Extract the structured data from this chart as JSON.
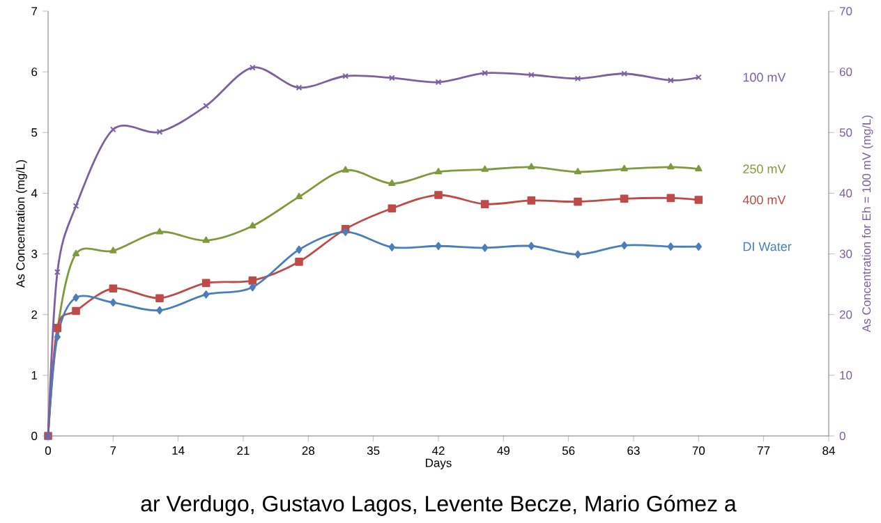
{
  "chart_data": {
    "type": "line",
    "xlabel": "Days",
    "ylabel": "As Concentration (mg/L)",
    "y2label": "As Concentration for Eh = 100 mV (mg/L)",
    "x": [
      0,
      1,
      3,
      7,
      12,
      17,
      22,
      27,
      32,
      37,
      42,
      47,
      52,
      57,
      62,
      67,
      70
    ],
    "xlim": [
      0,
      84
    ],
    "xticks": [
      0,
      7,
      14,
      21,
      28,
      35,
      42,
      49,
      56,
      63,
      70,
      77,
      84
    ],
    "ylim": [
      0,
      7
    ],
    "yticks": [
      0,
      1,
      2,
      3,
      4,
      5,
      6,
      7
    ],
    "y2lim": [
      0,
      70
    ],
    "y2ticks": [
      0,
      10,
      20,
      30,
      40,
      50,
      60,
      70
    ],
    "line_style": "solid",
    "series": [
      {
        "name": "DI Water",
        "color": "#4a7ebb",
        "marker": "diamond",
        "values": [
          0,
          1.63,
          2.28,
          2.2,
          2.07,
          2.33,
          2.45,
          3.07,
          3.36,
          3.11,
          3.13,
          3.1,
          3.13,
          2.99,
          3.14,
          3.12,
          3.12
        ]
      },
      {
        "name": "400 mV",
        "color": "#be4b48",
        "marker": "square",
        "values": [
          0,
          1.78,
          2.06,
          2.43,
          2.27,
          2.52,
          2.56,
          2.87,
          3.41,
          3.75,
          3.97,
          3.82,
          3.88,
          3.86,
          3.91,
          3.92,
          3.89
        ]
      },
      {
        "name": "250 mV",
        "color": "#7e9a3c",
        "marker": "triangle",
        "values": [
          0,
          1.75,
          3.0,
          3.05,
          3.36,
          3.22,
          3.46,
          3.94,
          4.38,
          4.16,
          4.35,
          4.39,
          4.43,
          4.35,
          4.4,
          4.43,
          4.4
        ]
      },
      {
        "name": "100 mV",
        "color": "#7d60a0",
        "marker": "cross",
        "axis": "y2",
        "values": [
          0,
          27,
          37.9,
          50.5,
          50.1,
          54.4,
          60.7,
          57.4,
          59.3,
          59,
          58.3,
          59.8,
          59.5,
          58.9,
          59.7,
          58.6,
          59.1
        ]
      }
    ],
    "annotations": [
      "ar Verdugo, Gustavo Lagos, Levente Becze, Mario Gómez a"
    ]
  }
}
